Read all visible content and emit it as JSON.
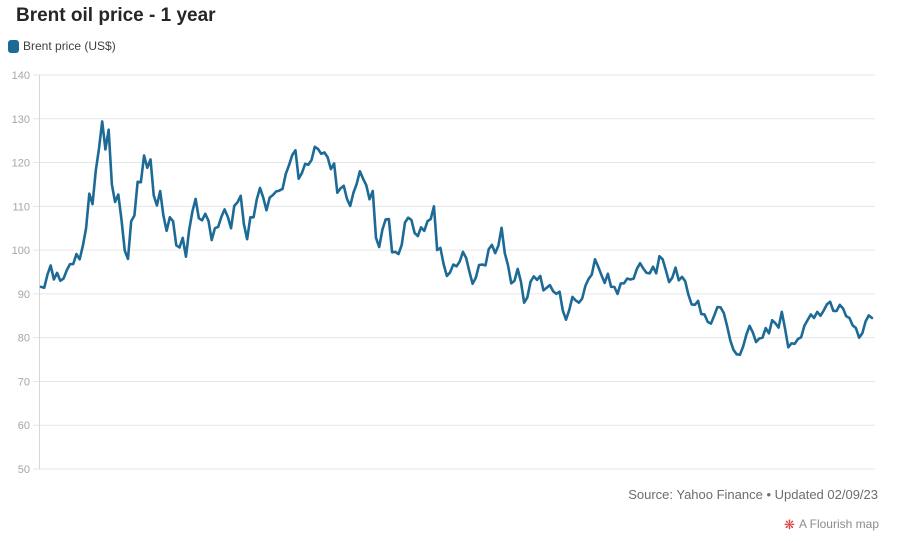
{
  "header": {
    "title": "Brent oil price - 1 year"
  },
  "legend": {
    "items": [
      {
        "label": "Brent price (US$)",
        "color": "#1d6a96"
      }
    ]
  },
  "chart_data": {
    "type": "line",
    "title": "Brent oil price - 1 year",
    "xlabel": "",
    "ylabel": "",
    "ylim": [
      50,
      140
    ],
    "y_ticks": [
      140,
      130,
      120,
      110,
      100,
      90,
      80,
      70,
      60,
      50
    ],
    "grid": "horizontal",
    "legend_position": "top-left",
    "series": [
      {
        "name": "Brent price (US$)",
        "color": "#1d6a96",
        "values": [
          91.6,
          91.4,
          94.4,
          96.5,
          93.3,
          94.8,
          93.0,
          93.5,
          95.4,
          96.8,
          96.8,
          99.1,
          97.9,
          101.0,
          105.0,
          112.9,
          110.5,
          118.1,
          123.2,
          129.4,
          123.0,
          127.5,
          115.0,
          111.0,
          112.7,
          106.9,
          99.9,
          98.0,
          106.6,
          107.9,
          115.6,
          115.5,
          121.6,
          118.8,
          120.7,
          112.5,
          110.2,
          113.5,
          107.9,
          104.4,
          107.5,
          106.6,
          101.1,
          100.6,
          102.8,
          98.5,
          104.6,
          108.8,
          111.7,
          107.3,
          106.8,
          108.3,
          106.7,
          102.3,
          105.0,
          105.3,
          107.6,
          109.3,
          107.6,
          105.0,
          110.1,
          110.9,
          112.4,
          105.9,
          102.5,
          107.5,
          107.5,
          111.6,
          114.2,
          112.0,
          109.1,
          112.0,
          112.6,
          113.4,
          113.6,
          114.0,
          117.4,
          119.4,
          121.7,
          122.8,
          116.3,
          117.6,
          119.7,
          119.5,
          120.6,
          123.6,
          123.1,
          122.0,
          122.3,
          121.2,
          118.5,
          119.8,
          113.1,
          114.1,
          114.7,
          111.7,
          110.1,
          113.1,
          115.1,
          118.0,
          116.3,
          114.8,
          111.6,
          113.5,
          102.8,
          100.7,
          104.7,
          107.0,
          107.1,
          99.5,
          99.6,
          99.1,
          101.2,
          106.3,
          107.4,
          106.9,
          103.9,
          103.2,
          105.2,
          104.4,
          106.6,
          107.1,
          110.0,
          100.0,
          100.5,
          96.8,
          94.1,
          94.9,
          96.7,
          96.3,
          97.4,
          99.6,
          98.2,
          95.1,
          92.3,
          93.7,
          96.6,
          96.7,
          96.5,
          100.2,
          101.2,
          99.3,
          101.0,
          105.1,
          99.3,
          96.5,
          92.4,
          93.0,
          95.7,
          92.8,
          88.0,
          89.2,
          92.8,
          94.0,
          93.2,
          94.1,
          90.8,
          91.4,
          92.0,
          90.6,
          90.0,
          90.5,
          86.2,
          84.1,
          86.3,
          89.3,
          88.5,
          88.0,
          88.9,
          91.8,
          93.4,
          94.4,
          97.9,
          96.2,
          94.3,
          92.5,
          94.6,
          91.6,
          91.6,
          90.0,
          92.4,
          92.4,
          93.5,
          93.3,
          93.5,
          95.7,
          97.0,
          95.8,
          94.8,
          94.7,
          96.2,
          94.7,
          98.6,
          97.9,
          95.4,
          92.7,
          93.7,
          96.0,
          93.1,
          93.9,
          92.9,
          89.8,
          87.6,
          87.5,
          88.4,
          85.4,
          85.3,
          83.6,
          83.2,
          85.0,
          87.0,
          86.9,
          85.6,
          82.7,
          79.4,
          77.2,
          76.2,
          76.1,
          78.0,
          80.7,
          82.7,
          81.2,
          79.0,
          79.8,
          80.0,
          82.2,
          81.0,
          84.0,
          83.3,
          82.3,
          85.9,
          82.1,
          77.8,
          78.7,
          78.6,
          79.7,
          80.1,
          82.7,
          84.0,
          85.3,
          84.5,
          85.9,
          85.0,
          86.2,
          87.6,
          88.2,
          86.1,
          86.1,
          87.5,
          86.7,
          84.9,
          84.5,
          82.8,
          82.2,
          80.0,
          81.0,
          83.7,
          85.1,
          84.5
        ]
      }
    ]
  },
  "footer": {
    "source": "Source: Yahoo Finance • Updated 02/09/23",
    "credit_label": "A Flourish map",
    "credit_icon_glyph": "❋"
  },
  "colors": {
    "line": "#1d6a96",
    "gridline": "#e6e6e6",
    "axis_line": "#d6d6d6",
    "tick_label": "#a6a6a6",
    "credit_red": "#e13b3b"
  }
}
